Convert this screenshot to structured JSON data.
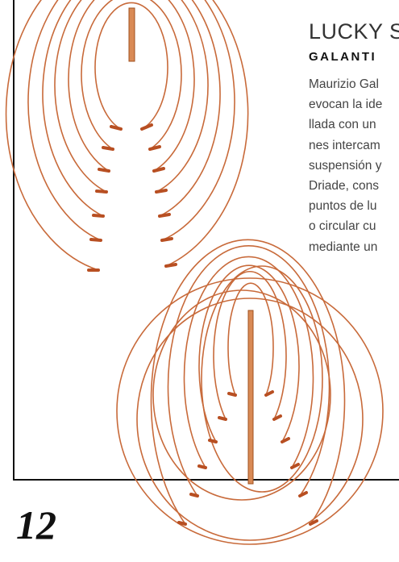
{
  "article": {
    "heading": "LUCKY S",
    "subheading": "GALANTI",
    "lines": [
      "Maurizio Gal",
      "evocan la ide",
      "llada con un",
      "nes intercam",
      "suspensión y",
      "Driade, cons",
      "puntos de lu",
      "o circular cu",
      "mediante un"
    ]
  },
  "page_number": "12"
}
